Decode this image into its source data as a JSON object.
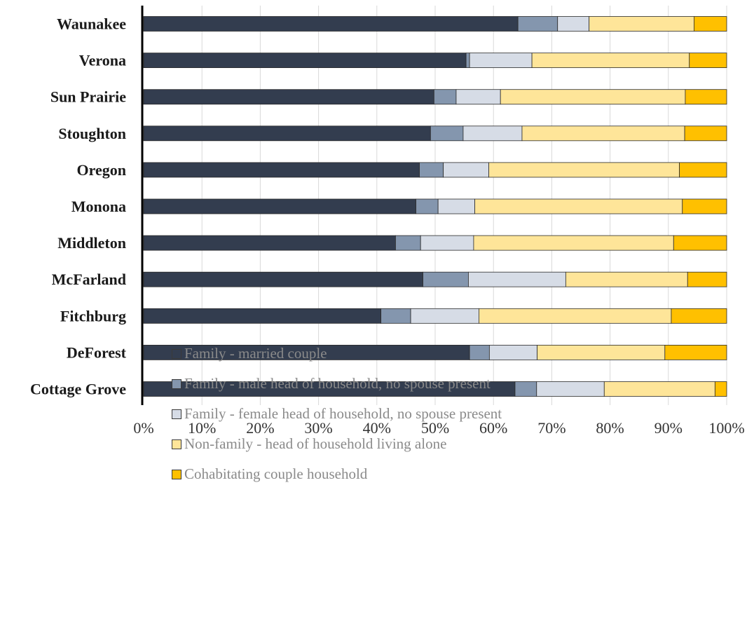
{
  "chart_data": {
    "type": "bar",
    "orientation": "horizontal",
    "stacked": "percent",
    "categories": [
      "Waunakee",
      "Verona",
      "Sun Prairie",
      "Stoughton",
      "Oregon",
      "Monona",
      "Middleton",
      "McFarland",
      "Fitchburg",
      "DeForest",
      "Cottage Grove"
    ],
    "series": [
      {
        "name": "Family - married couple",
        "color": "#333d4f",
        "values": [
          64.2,
          55.3,
          49.8,
          49.2,
          47.3,
          46.7,
          43.2,
          47.9,
          40.7,
          55.9,
          63.7
        ]
      },
      {
        "name": "Family - male head of household, no spouse present",
        "color": "#8496ae",
        "values": [
          6.8,
          0.6,
          3.8,
          5.6,
          4.1,
          3.8,
          4.3,
          7.8,
          5.1,
          3.4,
          3.7
        ]
      },
      {
        "name": "Family - female head of household, no spouse present",
        "color": "#d6dce6",
        "values": [
          5.4,
          10.7,
          7.6,
          10.1,
          7.8,
          6.3,
          9.1,
          16.7,
          11.7,
          8.2,
          11.6
        ]
      },
      {
        "name": "Non-family - head of household living alone",
        "color": "#fee599",
        "values": [
          18.0,
          27.0,
          31.7,
          27.9,
          32.7,
          35.6,
          34.3,
          20.9,
          33.0,
          21.9,
          19.0
        ]
      },
      {
        "name": "Cohabitating couple household",
        "color": "#ffc000",
        "values": [
          5.6,
          6.4,
          7.1,
          7.2,
          8.1,
          7.6,
          9.1,
          6.7,
          9.5,
          10.6,
          2.0
        ]
      }
    ],
    "xlim": [
      0,
      100
    ],
    "x_ticks": [
      "0%",
      "10%",
      "20%",
      "30%",
      "40%",
      "50%",
      "60%",
      "70%",
      "80%",
      "90%",
      "100%"
    ],
    "grid": "vertical",
    "legend_position": "bottom",
    "title": "",
    "xlabel": "",
    "ylabel": ""
  }
}
